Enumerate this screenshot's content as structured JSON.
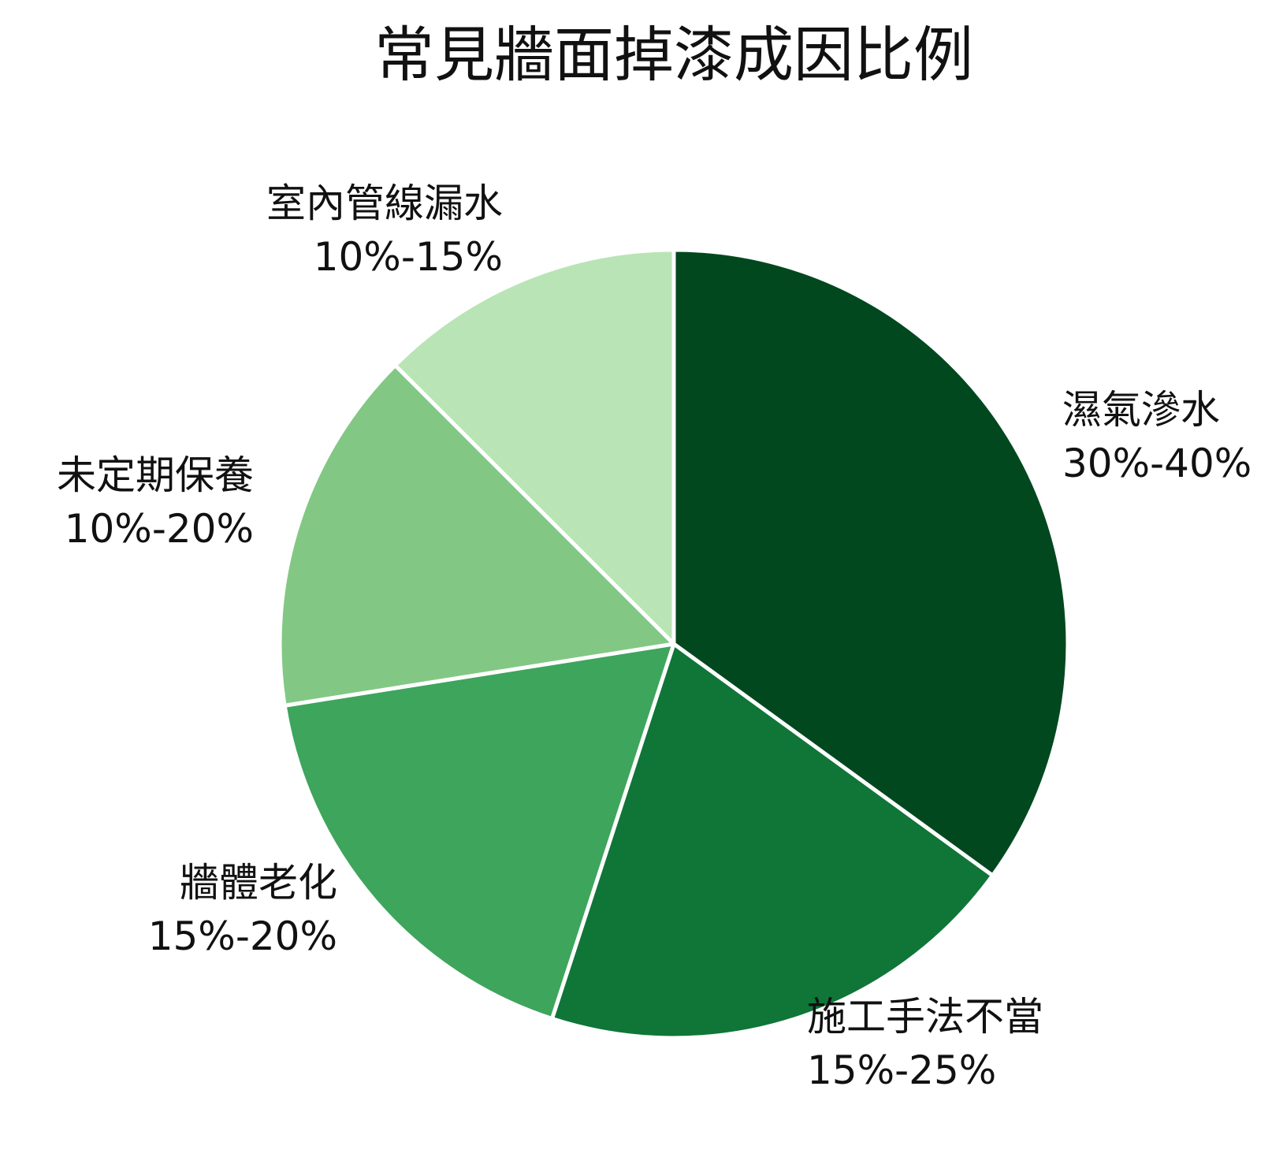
{
  "chart_data": {
    "type": "pie",
    "title": "常見牆面掉漆成因比例",
    "slices": [
      {
        "label": "濕氣滲水",
        "range": "30%-40%",
        "value": 35,
        "color": "#02481f"
      },
      {
        "label": "施工手法不當",
        "range": "15%-25%",
        "value": 20,
        "color": "#0f7638"
      },
      {
        "label": "牆體老化",
        "range": "15%-20%",
        "value": 17.5,
        "color": "#3ea55c"
      },
      {
        "label": "未定期保養",
        "range": "10%-20%",
        "value": 15,
        "color": "#82c884"
      },
      {
        "label": "室內管線漏水",
        "range": "10%-15%",
        "value": 12.5,
        "color": "#b9e4b5"
      }
    ],
    "legend": "none"
  }
}
